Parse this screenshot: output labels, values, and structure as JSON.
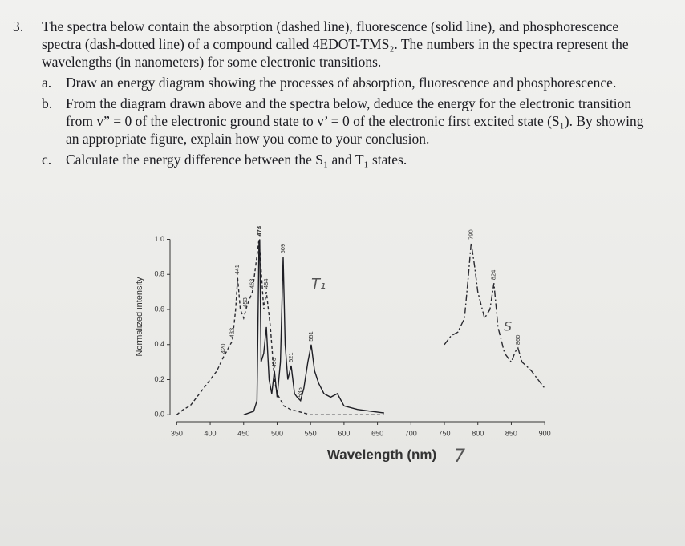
{
  "question": {
    "number": "3.",
    "text": "The spectra below contain the absorption (dashed line), fluorescence (solid line), and phosphorescence spectra (dash-dotted line) of a compound called 4EDOT-TMS₂. The numbers in the spectra represent the wavelengths (in nanometers) for some electronic transitions."
  },
  "parts": [
    {
      "label": "a.",
      "text": "Draw an energy diagram showing the processes of absorption, fluorescence and phosphorescence."
    },
    {
      "label": "b.",
      "text": "From the diagram drawn above and the spectra below, deduce the energy for the electronic transition from v” = 0 of the electronic ground state to v’ = 0 of the electronic first excited state (S₁). By showing an appropriate figure, explain how you come to your conclusion."
    },
    {
      "label": "c.",
      "text": "Calculate the energy difference between the S₁ and T₁ states."
    }
  ],
  "chart_data": {
    "type": "line",
    "xlabel": "Wavelength (nm)",
    "ylabel": "Normalized intensity",
    "xlim": [
      340,
      913
    ],
    "xticks": [
      350,
      400,
      450,
      500,
      550,
      600,
      650,
      700,
      750,
      800,
      850,
      900
    ],
    "ylim": [
      -0.04,
      1.08
    ],
    "yticks": [
      {
        "value": 0,
        "label": "0.0"
      },
      {
        "value": 0.2,
        "label": "0.2"
      },
      {
        "value": 0.4,
        "label": "0.4"
      },
      {
        "value": 0.6,
        "label": "0.6"
      },
      {
        "value": 0.8,
        "label": "0.8"
      },
      {
        "value": 1,
        "label": "1.0"
      }
    ],
    "series": [
      {
        "color": "#2a2a30",
        "style": "dashed",
        "x": [
          350,
          360,
          370,
          380,
          390,
          400,
          410,
          420,
          430,
          433,
          438,
          441,
          445,
          450,
          455,
          463,
          468,
          473,
          475,
          480,
          484,
          490,
          496,
          500,
          510,
          520,
          550,
          600,
          660
        ],
        "values": [
          0.0,
          0.03,
          0.05,
          0.1,
          0.15,
          0.2,
          0.25,
          0.33,
          0.4,
          0.42,
          0.6,
          0.78,
          0.6,
          0.55,
          0.62,
          0.7,
          0.85,
          1.0,
          0.9,
          0.6,
          0.7,
          0.5,
          0.2,
          0.12,
          0.05,
          0.03,
          0.0,
          0.0,
          0.0
        ]
      },
      {
        "color": "#1e1e24",
        "style": "solid",
        "x": [
          450,
          465,
          470,
          473,
          474,
          476,
          480,
          484,
          488,
          492,
          496,
          500,
          505,
          509,
          512,
          516,
          521,
          526,
          530,
          535,
          540,
          546,
          551,
          556,
          562,
          570,
          580,
          590,
          600,
          620,
          640,
          660
        ],
        "values": [
          0.0,
          0.02,
          0.08,
          0.98,
          1.0,
          0.3,
          0.35,
          0.5,
          0.2,
          0.12,
          0.25,
          0.1,
          0.3,
          0.9,
          0.4,
          0.2,
          0.28,
          0.12,
          0.1,
          0.08,
          0.15,
          0.3,
          0.4,
          0.25,
          0.18,
          0.12,
          0.1,
          0.12,
          0.05,
          0.03,
          0.02,
          0.01
        ]
      },
      {
        "color": "#2a2a30",
        "style": "dashdot",
        "x": [
          750,
          760,
          770,
          780,
          786,
          790,
          795,
          800,
          810,
          818,
          824,
          830,
          840,
          850,
          856,
          860,
          866,
          872,
          880,
          890,
          900
        ],
        "values": [
          0.4,
          0.45,
          0.47,
          0.55,
          0.8,
          0.98,
          0.85,
          0.7,
          0.55,
          0.6,
          0.75,
          0.5,
          0.35,
          0.3,
          0.36,
          0.38,
          0.3,
          0.28,
          0.25,
          0.2,
          0.15
        ]
      }
    ],
    "peak_labels": [
      420,
      433,
      441,
      453,
      463,
      473,
      474,
      484,
      496,
      509,
      521,
      535,
      551,
      790,
      824,
      860
    ],
    "handwriting": [
      "T₁",
      "S",
      "7"
    ]
  }
}
